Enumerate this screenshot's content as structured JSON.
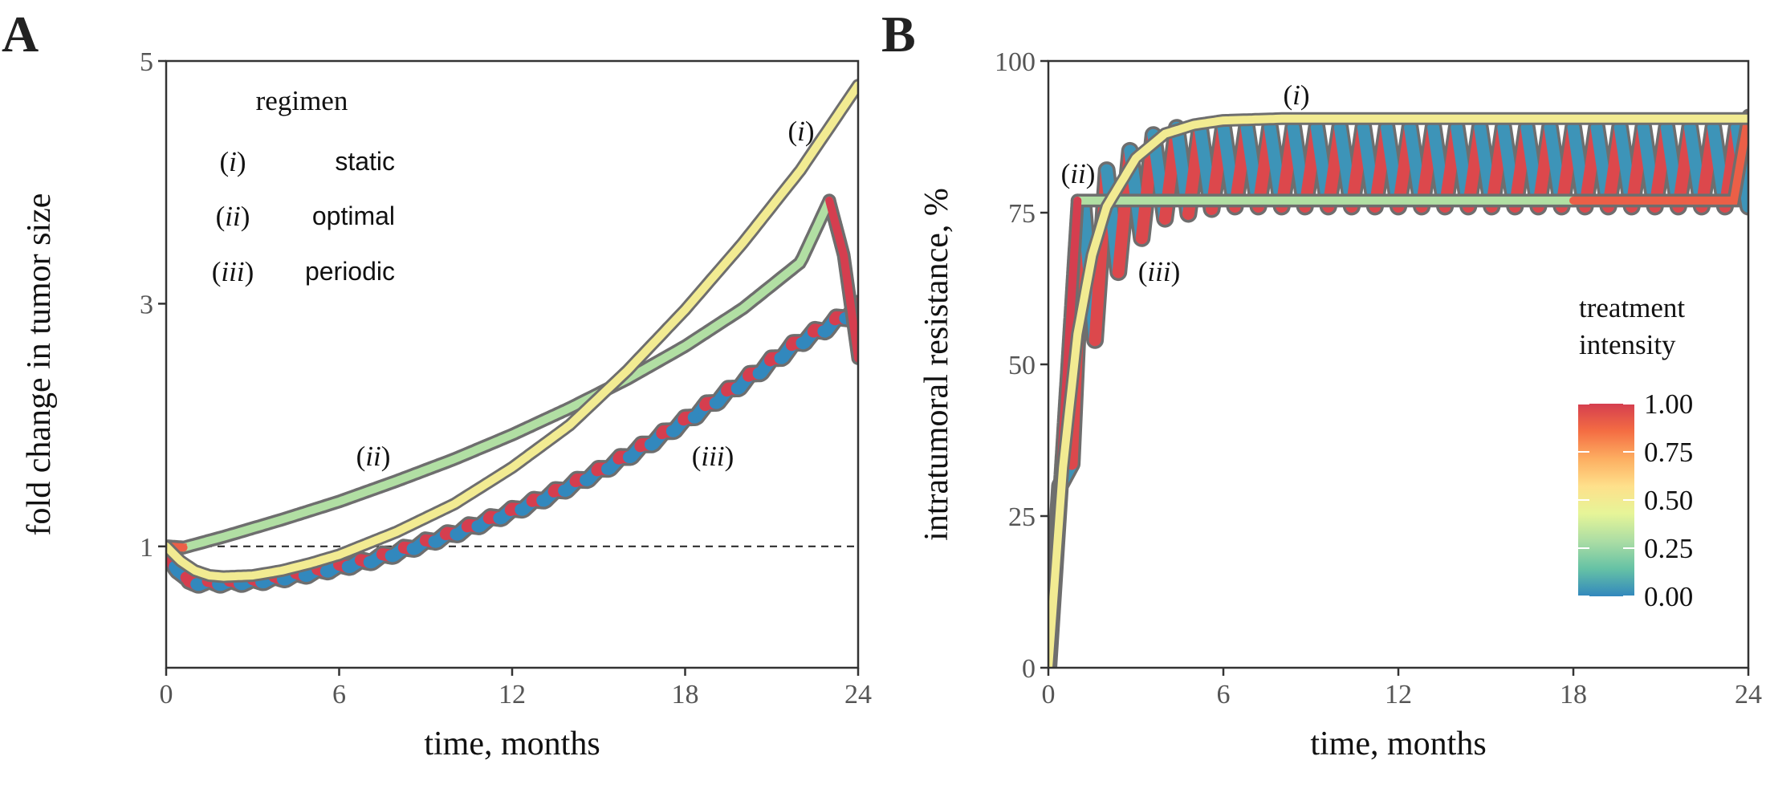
{
  "figure": {
    "panel_a_letter": "A",
    "panel_b_letter": "B"
  },
  "legend_regimen": {
    "title": "regimen",
    "entries": [
      {
        "numeral": "i",
        "label": "static"
      },
      {
        "numeral": "ii",
        "label": "optimal"
      },
      {
        "numeral": "iii",
        "label": "periodic"
      }
    ]
  },
  "legend_intensity": {
    "title_line1": "treatment",
    "title_line2": "intensity",
    "ticks": [
      "1.00",
      "0.75",
      "0.50",
      "0.25",
      "0.00"
    ],
    "colors": [
      "#d53e4f",
      "#f46d43",
      "#fdae61",
      "#fee08b",
      "#e6f598",
      "#abdda4",
      "#66c2a5",
      "#3288bd"
    ]
  },
  "chart_data": [
    {
      "type": "line",
      "panel": "A",
      "xlabel": "time, months",
      "ylabel": "fold change in tumor size",
      "xlim": [
        0,
        24
      ],
      "ylim": [
        0,
        5
      ],
      "x_ticks": [
        "0",
        "6",
        "12",
        "18",
        "24"
      ],
      "y_ticks": [
        "1",
        "3",
        "5"
      ],
      "reference_line": {
        "y": 1,
        "style": "dashed"
      },
      "series": [
        {
          "name": "(i) static",
          "label": "(i)",
          "intensity": 0.5,
          "x": [
            0,
            0.5,
            1,
            1.5,
            2,
            3,
            4,
            5,
            6,
            8,
            10,
            12,
            14,
            16,
            18,
            20,
            22,
            24
          ],
          "y": [
            1.0,
            0.88,
            0.8,
            0.76,
            0.75,
            0.76,
            0.8,
            0.86,
            0.93,
            1.12,
            1.35,
            1.65,
            2.0,
            2.45,
            2.95,
            3.5,
            4.1,
            4.8
          ]
        },
        {
          "name": "(ii) optimal",
          "label": "(ii)",
          "intensity_start": 0.9,
          "intensity_main": 0.3,
          "intensity_end": 1.0,
          "x": [
            0,
            0.6,
            2,
            4,
            6,
            8,
            10,
            12,
            14,
            16,
            18,
            20,
            22,
            23,
            23.5,
            24
          ],
          "y": [
            1.0,
            0.99,
            1.08,
            1.22,
            1.37,
            1.54,
            1.72,
            1.92,
            2.14,
            2.38,
            2.65,
            2.96,
            3.34,
            3.85,
            3.4,
            2.55
          ]
        },
        {
          "name": "(iii) periodic",
          "label": "(iii)",
          "intensity_pattern": "alternating 1.00 / 0.00",
          "x": [
            0,
            0.8,
            2,
            3,
            4,
            5,
            6,
            7,
            8,
            9,
            10,
            11,
            12,
            13,
            14,
            15,
            16,
            17,
            18,
            19,
            20,
            21,
            22,
            23,
            24
          ],
          "y": [
            0.95,
            0.72,
            0.72,
            0.73,
            0.76,
            0.8,
            0.85,
            0.9,
            0.97,
            1.05,
            1.13,
            1.22,
            1.31,
            1.41,
            1.52,
            1.64,
            1.77,
            1.91,
            2.06,
            2.22,
            2.38,
            2.55,
            2.72,
            2.85,
            3.0
          ]
        }
      ]
    },
    {
      "type": "line",
      "panel": "B",
      "xlabel": "time, months",
      "ylabel": "intratumoral resistance, %",
      "xlim": [
        0,
        24
      ],
      "ylim": [
        0,
        100
      ],
      "x_ticks": [
        "0",
        "6",
        "12",
        "18",
        "24"
      ],
      "y_ticks": [
        "0",
        "25",
        "50",
        "75",
        "100"
      ],
      "series": [
        {
          "name": "(i) static",
          "label": "(i)",
          "intensity": 0.5,
          "x": [
            0,
            0.5,
            1,
            1.5,
            2,
            3,
            4,
            5,
            6,
            8,
            12,
            16,
            20,
            24
          ],
          "y": [
            0,
            33,
            55,
            68,
            76,
            84,
            88,
            89.5,
            90.2,
            90.5,
            90.5,
            90.5,
            90.5,
            90.5
          ]
        },
        {
          "name": "(ii) optimal",
          "label": "(ii)",
          "intensity_start": 1.0,
          "intensity_main": 0.3,
          "intensity_end": 0.9,
          "x": [
            0,
            1,
            2,
            6,
            12,
            18,
            23.5,
            24
          ],
          "y": [
            0,
            77,
            77,
            77,
            77,
            77,
            77,
            91
          ]
        },
        {
          "name": "(iii) periodic",
          "label": "(iii)",
          "intensity_pattern": "alternating 1.00 / 0.00",
          "x": [
            0,
            1.0,
            2.0,
            3.0,
            4.0,
            5.0,
            6.0,
            24
          ],
          "y": [
            0,
            42,
            62,
            70,
            74,
            75,
            76,
            76
          ],
          "upper_envelope": [
            0,
            75,
            82,
            86,
            89,
            89,
            89,
            89
          ]
        }
      ]
    }
  ]
}
